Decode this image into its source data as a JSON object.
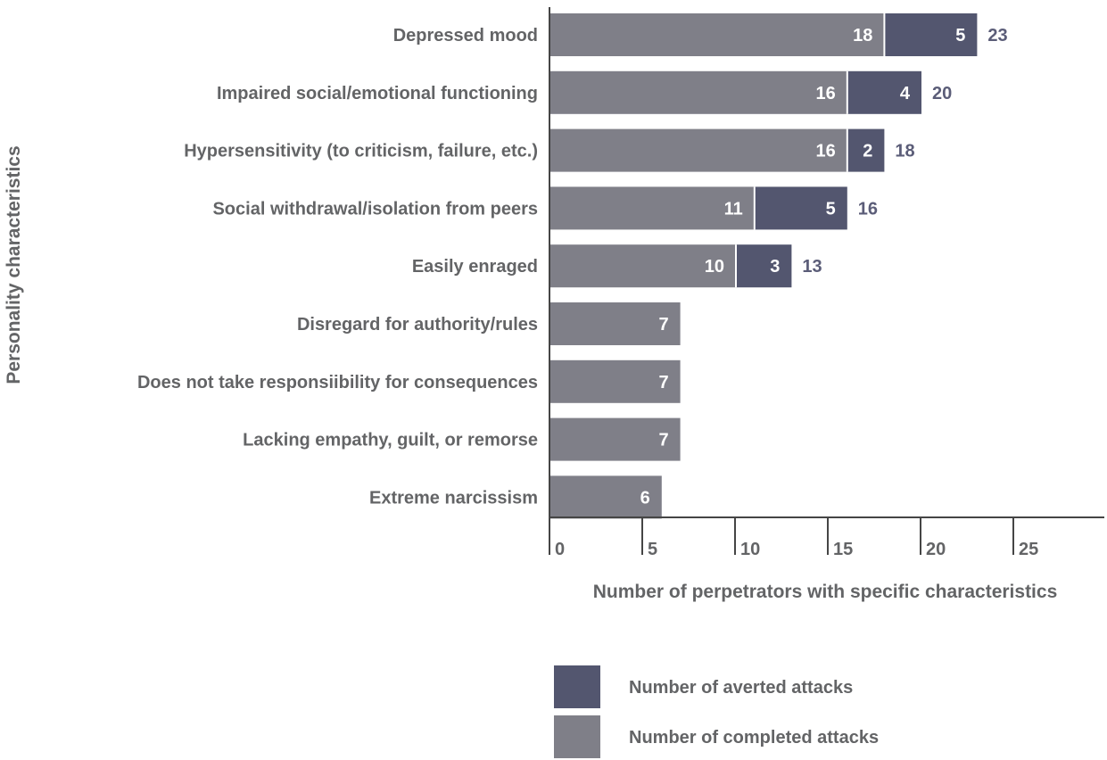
{
  "chart_data": {
    "type": "bar",
    "orientation": "horizontal",
    "stacked": true,
    "categories": [
      "Depressed mood",
      "Impaired social/emotional functioning",
      "Hypersensitivity (to criticism, failure, etc.)",
      "Social withdrawal/isolation from peers",
      "Easily enraged",
      "Disregard for authority/rules",
      "Does not take responsiibility for consequences",
      "Lacking empathy, guilt, or remorse",
      "Extreme narcissism"
    ],
    "series": [
      {
        "name": "Number of completed attacks",
        "color": "#7f7f88",
        "values": [
          18,
          16,
          16,
          11,
          10,
          7,
          7,
          7,
          6
        ]
      },
      {
        "name": "Number of averted attacks",
        "color": "#53566f",
        "values": [
          5,
          4,
          2,
          5,
          3,
          0,
          0,
          0,
          0
        ]
      }
    ],
    "totals": [
      23,
      20,
      18,
      16,
      13,
      null,
      null,
      null,
      null
    ],
    "xlabel": "Number of perpetrators with specific characteristics",
    "ylabel": "Personality characteristics",
    "xlim": [
      0,
      30
    ],
    "xticks": [
      0,
      5,
      10,
      15,
      20,
      25
    ],
    "grid": false,
    "legend_order": [
      "Number of averted attacks",
      "Number of completed attacks"
    ],
    "legend_position": "bottom-right"
  },
  "colors": {
    "axis": "#454545",
    "text": "#636466",
    "total": "#5b5d78"
  }
}
